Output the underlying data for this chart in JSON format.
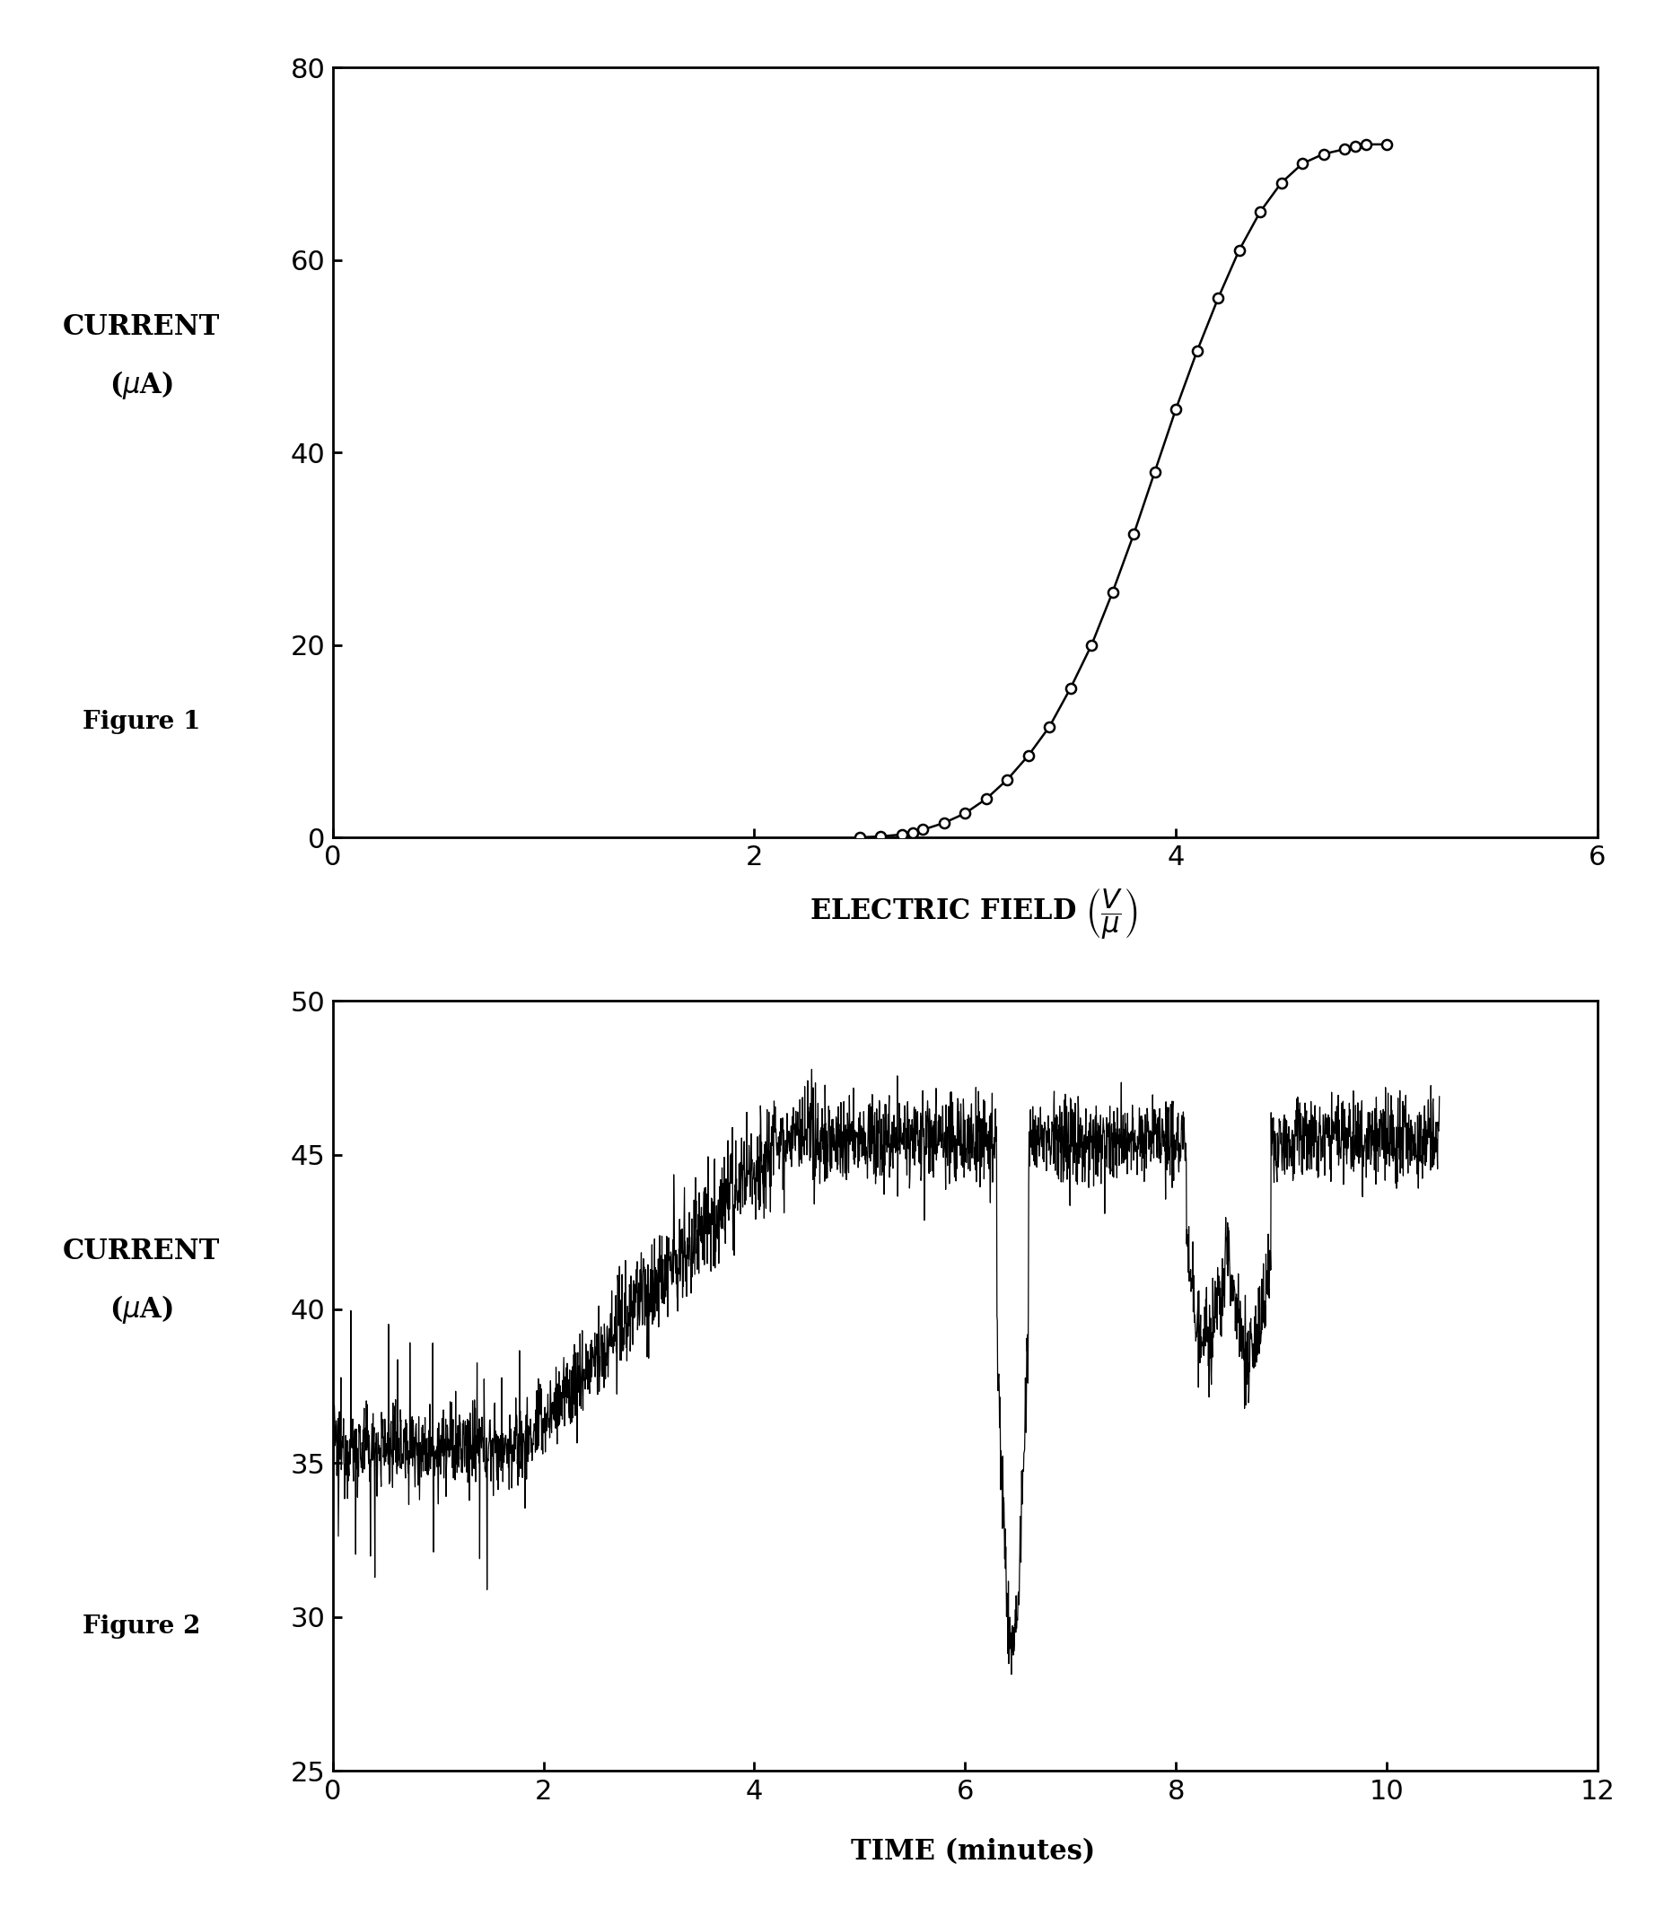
{
  "fig1": {
    "x": [
      2.5,
      2.6,
      2.7,
      2.75,
      2.8,
      2.9,
      3.0,
      3.1,
      3.2,
      3.3,
      3.4,
      3.5,
      3.6,
      3.7,
      3.8,
      3.9,
      4.0,
      4.1,
      4.2,
      4.3,
      4.4,
      4.5,
      4.6,
      4.7,
      4.8,
      4.85,
      4.9,
      5.0
    ],
    "y": [
      0.0,
      0.1,
      0.3,
      0.5,
      0.8,
      1.5,
      2.5,
      4.0,
      6.0,
      8.5,
      11.5,
      15.5,
      20.0,
      25.5,
      31.5,
      38.0,
      44.5,
      50.5,
      56.0,
      61.0,
      65.0,
      68.0,
      70.0,
      71.0,
      71.5,
      71.8,
      72.0,
      72.0
    ],
    "xlim": [
      0,
      6
    ],
    "ylim": [
      0,
      80
    ],
    "xticks": [
      0,
      2,
      4,
      6
    ],
    "yticks": [
      0,
      20,
      40,
      60,
      80
    ],
    "figure_label": "Figure 1"
  },
  "fig2": {
    "xlim": [
      0,
      12
    ],
    "ylim": [
      25,
      50
    ],
    "xticks": [
      0,
      2,
      4,
      6,
      8,
      10,
      12
    ],
    "yticks": [
      25,
      30,
      35,
      40,
      45,
      50
    ],
    "figure_label": "Figure 2"
  },
  "background_color": "#ffffff",
  "line_color": "#000000",
  "marker_facecolor": "#ffffff",
  "marker_edgecolor": "#000000"
}
